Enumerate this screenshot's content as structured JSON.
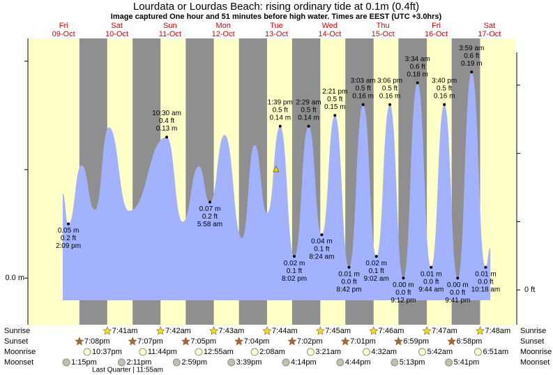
{
  "chart_data": {
    "type": "area",
    "title": "Lourdata or Lourdas Beach: rising  ordinary tide at 0.1m (0.4ft)",
    "subtitle": "Image captured One hour and 51 minutes before high water. Times are EEST (UTC +3.0hrs)",
    "categories": [
      "Fri",
      "Sat",
      "Sun",
      "Mon",
      "Tue",
      "Wed",
      "Thu",
      "Fri",
      "Sat"
    ],
    "dates": [
      "09-Oct",
      "10-Oct",
      "11-Oct",
      "12-Oct",
      "13-Oct",
      "14-Oct",
      "15-Oct",
      "16-Oct",
      "17-Oct"
    ],
    "xlim": [
      -4.09,
      216.0
    ],
    "ylim": [
      -0.043,
      0.221
    ],
    "yticks": [
      {
        "value": 0,
        "label": "0.0 m"
      },
      {
        "value": 0.1,
        "label": null
      },
      {
        "value": 0.2,
        "label": null
      }
    ],
    "y2lim": [
      -0.102,
      0.737
    ],
    "y2ticks": [
      {
        "value": 0,
        "label": "0 ft"
      },
      {
        "value": 0.2,
        "label": null
      },
      {
        "value": 0.4,
        "label": null
      },
      {
        "value": 0.6,
        "label": null
      }
    ],
    "series": [
      {
        "color": "#a3b2ff",
        "x": [
          11.6,
          14.15,
          20.1,
          26.1,
          32.4,
          41.5,
          58.5,
          65.7,
          73.0,
          77.97,
          84.6,
          92.5,
          98.1,
          103.8,
          109.65,
          116.03,
          122.48,
          128.4,
          134.35,
          140.7,
          147.05,
          153.03,
          159.1,
          165.2,
          171.57,
          177.73,
          183.67,
          189.68,
          195.98,
          202.3,
          204.4
        ],
        "values": [
          0.078,
          0.05,
          0.104,
          0.063,
          0.139,
          0.062,
          0.13,
          0.052,
          0.103,
          0.07,
          0.132,
          0.037,
          0.123,
          0.06,
          0.14,
          0.02,
          0.14,
          0.04,
          0.15,
          0.01,
          0.16,
          0.02,
          0.16,
          0.0,
          0.18,
          0.01,
          0.16,
          0.0,
          0.19,
          0.01,
          0.028
        ],
        "value_labels": [
          null,
          "0.05 m",
          null,
          null,
          null,
          null,
          "0.13 m",
          null,
          null,
          "0.07 m",
          null,
          null,
          null,
          null,
          "0.14 m",
          "0.02 m",
          "0.14 m",
          "0.04 m",
          "0.15 m",
          "0.01 m",
          "0.16 m",
          "0.02 m",
          "0.16 m",
          "0.00 m",
          "0.18 m",
          "0.01 m",
          "0.16 m",
          "0.00 m",
          "0.19 m",
          "0.01 m",
          null
        ],
        "ft_labels": [
          null,
          "0.2 ft",
          null,
          null,
          null,
          null,
          "0.4 ft",
          null,
          null,
          "0.2 ft",
          null,
          null,
          null,
          null,
          "0.5 ft",
          "0.1 ft",
          "0.5 ft",
          "0.1 ft",
          "0.5 ft",
          "0.0 ft",
          "0.5 ft",
          "0.1 ft",
          "0.5 ft",
          "0.0 ft",
          "0.6 ft",
          "0.0 ft",
          "0.5 ft",
          "0.0 ft",
          "0.6 ft",
          "0.0 ft",
          null
        ],
        "time_labels": [
          null,
          "2:09 pm",
          null,
          null,
          null,
          null,
          "10:30 am",
          null,
          null,
          "5:58 am",
          null,
          null,
          null,
          null,
          "1:39 pm",
          "8:02 pm",
          "2:29 am",
          "8:24 am",
          "2:21 pm",
          "8:42 pm",
          "3:03 am",
          "9:02 am",
          "3:06 pm",
          "9:12 pm",
          "3:34 am",
          "9:44 am",
          "3:40 pm",
          "9:41 pm",
          "3:59 am",
          "10:18 am",
          null
        ]
      }
    ],
    "now_marker": {
      "x": 107.8,
      "value": 0.1
    },
    "rows": [
      {
        "name": "Sunrise",
        "x": [
          31.68,
          55.7,
          79.72,
          103.73,
          127.75,
          151.77,
          175.78,
          199.8
        ],
        "labels": [
          "7:41am",
          "7:42am",
          "7:43am",
          "7:44am",
          "7:45am",
          "7:46am",
          "7:47am",
          "7:48am"
        ]
      },
      {
        "name": "Sunset",
        "x": [
          19.13,
          43.12,
          67.08,
          91.07,
          115.03,
          139.02,
          162.98,
          186.97
        ],
        "labels": [
          "7:08pm",
          "7:07pm",
          "7:05pm",
          "7:04pm",
          "7:02pm",
          "7:01pm",
          "6:59pm",
          "6:58pm"
        ]
      },
      {
        "name": "Moonrise",
        "x": [
          22.62,
          47.73,
          72.92,
          98.13,
          123.35,
          148.53,
          173.7,
          198.85
        ],
        "labels": [
          "10:37pm",
          "11:44pm",
          "12:55am",
          "2:08am",
          "3:21am",
          "4:32am",
          "5:42am",
          "6:51am"
        ]
      },
      {
        "name": "Moonset",
        "x": [
          13.25,
          38.18,
          62.98,
          87.65,
          112.23,
          136.73,
          161.22,
          185.68
        ],
        "labels": [
          "1:15pm",
          "2:11pm",
          "2:59pm",
          "3:39pm",
          "4:14pm",
          "4:44pm",
          "5:13pm",
          "5:41pm"
        ]
      }
    ],
    "moon_phase_note": "Last Quarter | 11:55am"
  }
}
